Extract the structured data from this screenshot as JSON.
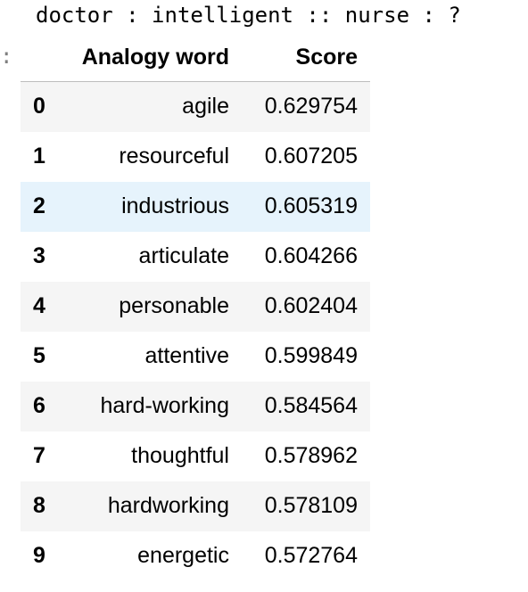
{
  "output": {
    "print_line": "doctor : intelligent :: nurse : ?",
    "prompt_marker": ":"
  },
  "table": {
    "index_header": "",
    "columns": [
      "Analogy word",
      "Score"
    ],
    "rows": [
      {
        "index": "0",
        "word": "agile",
        "score": "0.629754"
      },
      {
        "index": "1",
        "word": "resourceful",
        "score": "0.607205"
      },
      {
        "index": "2",
        "word": "industrious",
        "score": "0.605319"
      },
      {
        "index": "3",
        "word": "articulate",
        "score": "0.604266"
      },
      {
        "index": "4",
        "word": "personable",
        "score": "0.602404"
      },
      {
        "index": "5",
        "word": "attentive",
        "score": "0.599849"
      },
      {
        "index": "6",
        "word": "hard-working",
        "score": "0.584564"
      },
      {
        "index": "7",
        "word": "thoughtful",
        "score": "0.578962"
      },
      {
        "index": "8",
        "word": "hardworking",
        "score": "0.578109"
      },
      {
        "index": "9",
        "word": "energetic",
        "score": "0.572764"
      }
    ],
    "hovered_row_index": 2
  },
  "colors": {
    "stripe": "#f5f5f5",
    "hover": "#e6f3fc",
    "header_rule": "#bdbdbd"
  }
}
